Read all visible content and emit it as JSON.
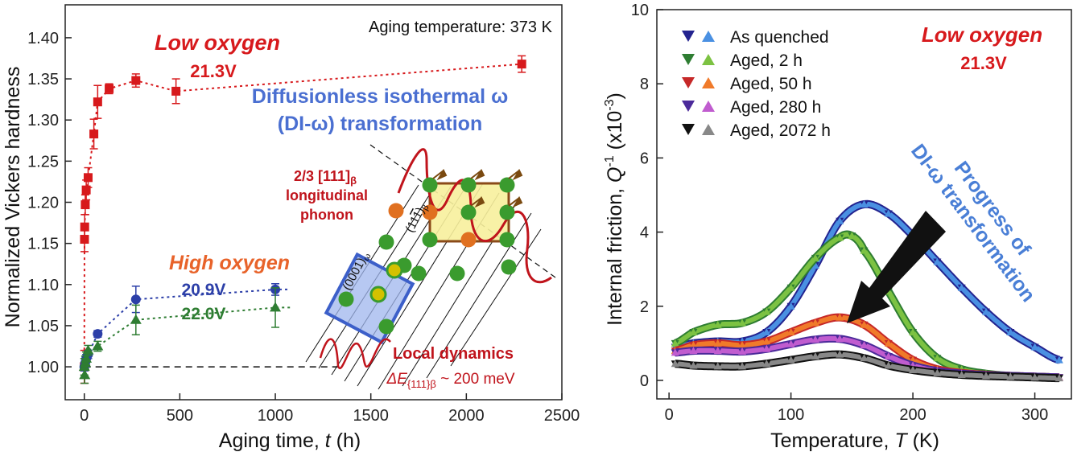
{
  "colors": {
    "red": "#d7191c",
    "blue": "#2c3fa8",
    "green": "#2e7d32",
    "orange": "#e8632a",
    "diagram_blue": "#4a6fd1",
    "lattice_green": "#3a9b2e",
    "lattice_orange": "#e07020",
    "as_quenched_dark": "#23238f",
    "as_quenched_light": "#4a90e2",
    "aged2_dark": "#2e7d32",
    "aged2_light": "#7cc242",
    "aged50_dark": "#c62828",
    "aged50_light": "#f07a2a",
    "aged280_dark": "#4b2a9a",
    "aged280_light": "#c05ccf",
    "aged2072_dark": "#111111",
    "aged2072_light": "#888888"
  },
  "chart_data": [
    {
      "type": "scatter",
      "xlabel_main": "Aging time, ",
      "xlabel_var": "t",
      "xlabel_unit": " (h)",
      "ylabel": "Normalized Vickers hardness",
      "xlim": [
        -100,
        2500
      ],
      "ylim": [
        0.96,
        1.44
      ],
      "xticks": [
        0,
        500,
        1000,
        1500,
        2000,
        2500
      ],
      "yticks": [
        1.0,
        1.05,
        1.1,
        1.15,
        1.2,
        1.25,
        1.3,
        1.35,
        1.4
      ],
      "reference_line_y": 1.0,
      "annotations": {
        "aging_temp": "Aging temperature: 373 K",
        "low_oxygen": "Low oxygen",
        "low_label": "21.3V",
        "high_oxygen": "High oxygen",
        "label_209": "20.9V",
        "label_220": "22.0V",
        "di_line1": "Diffusionless isothermal ω",
        "di_line2": "(DI-ω) transformation",
        "phonon_line1_main": "2/3 [111]",
        "phonon_line1_sub": "β",
        "phonon_line2": "longitudinal",
        "phonon_line3": "phonon",
        "local_dynamics": "Local dynamics",
        "delta_e_main": "ΔE",
        "delta_e_sub": "{111}β",
        "delta_e_rest": " ~ 200 meV",
        "plane_omega_main": "(0001)",
        "plane_omega_sub": "ω",
        "plane_beta_main": "(11",
        "plane_beta_bar": "1",
        "plane_beta_close": ")",
        "plane_beta_sub": "β"
      },
      "series": [
        {
          "name": "21.3V",
          "marker": "square",
          "color": "#d7191c",
          "x": [
            0,
            1,
            2,
            5,
            10,
            20,
            50,
            70,
            130,
            270,
            480,
            2290
          ],
          "y": [
            1.0,
            1.155,
            1.17,
            1.197,
            1.215,
            1.23,
            1.283,
            1.322,
            1.338,
            1.348,
            1.335,
            1.368
          ],
          "err": [
            0.02,
            0.015,
            0.015,
            0.012,
            0.012,
            0.012,
            0.018,
            0.02,
            0.006,
            0.008,
            0.015,
            0.01
          ]
        },
        {
          "name": "20.9V",
          "marker": "circle",
          "color": "#2c3fa8",
          "x": [
            0,
            5,
            10,
            20,
            70,
            270,
            1000
          ],
          "y": [
            1.0,
            1.005,
            1.01,
            1.015,
            1.04,
            1.082,
            1.094
          ],
          "err": [
            0.005,
            0.005,
            0.005,
            0.005,
            0.004,
            0.016,
            0.007
          ]
        },
        {
          "name": "22.0V",
          "marker": "triangle",
          "color": "#2e7d32",
          "x": [
            0,
            2,
            5,
            10,
            20,
            70,
            270,
            1000
          ],
          "y": [
            1.0,
            0.99,
            1.005,
            1.01,
            1.02,
            1.025,
            1.057,
            1.072
          ],
          "err": [
            0.01,
            0.01,
            0.008,
            0.008,
            0.006,
            0.006,
            0.018,
            0.024
          ]
        }
      ]
    },
    {
      "type": "line",
      "xlabel_main": "Temperature, ",
      "xlabel_var": "T",
      "xlabel_unit": " (K)",
      "ylabel_main": "Internal friction, ",
      "ylabel_var": "Q",
      "ylabel_sup": "-1",
      "ylabel_rest": " (x10",
      "ylabel_sup2": "-3",
      "ylabel_close": ")",
      "xlim": [
        -10,
        330
      ],
      "ylim": [
        -0.5,
        10
      ],
      "xticks": [
        0,
        100,
        200,
        300
      ],
      "yticks": [
        0,
        2,
        4,
        6,
        8,
        10
      ],
      "annotations": {
        "low_oxygen": "Low oxygen",
        "low_label": "21.3V",
        "progress_line1": "Progress of",
        "progress_line2": "DI-ω transformation"
      },
      "series": [
        {
          "name": "As quenched",
          "dark": "#23238f",
          "light": "#4a90e2",
          "x": [
            5,
            20,
            40,
            60,
            80,
            100,
            120,
            140,
            160,
            180,
            200,
            220,
            240,
            260,
            280,
            300,
            320
          ],
          "y": [
            0.9,
            1.0,
            1.05,
            1.05,
            1.3,
            2.0,
            3.1,
            4.3,
            4.75,
            4.5,
            3.9,
            3.2,
            2.5,
            1.85,
            1.3,
            0.9,
            0.55
          ]
        },
        {
          "name": "Aged, 2 h",
          "dark": "#2e7d32",
          "light": "#7cc242",
          "x": [
            5,
            20,
            40,
            60,
            80,
            100,
            120,
            140,
            150,
            160,
            180,
            200,
            220,
            240,
            260,
            280,
            300,
            320
          ],
          "y": [
            1.0,
            1.3,
            1.5,
            1.55,
            1.85,
            2.5,
            3.3,
            3.85,
            3.9,
            3.5,
            2.4,
            1.3,
            0.6,
            0.3,
            0.18,
            0.12,
            0.1,
            0.08
          ]
        },
        {
          "name": "Aged, 50 h",
          "dark": "#c62828",
          "light": "#f07a2a",
          "x": [
            5,
            20,
            40,
            60,
            80,
            100,
            120,
            140,
            160,
            180,
            200,
            220,
            240,
            260,
            280,
            300,
            320
          ],
          "y": [
            0.8,
            0.95,
            1.0,
            0.95,
            1.05,
            1.3,
            1.55,
            1.7,
            1.5,
            1.0,
            0.55,
            0.3,
            0.2,
            0.15,
            0.12,
            0.1,
            0.08
          ]
        },
        {
          "name": "Aged, 280 h",
          "dark": "#4b2a9a",
          "light": "#c05ccf",
          "x": [
            5,
            20,
            40,
            60,
            80,
            100,
            120,
            140,
            160,
            180,
            200,
            220,
            240,
            260,
            280,
            300,
            320
          ],
          "y": [
            0.75,
            0.8,
            0.8,
            0.78,
            0.85,
            0.98,
            1.1,
            1.12,
            0.95,
            0.65,
            0.4,
            0.25,
            0.18,
            0.14,
            0.12,
            0.1,
            0.08
          ]
        },
        {
          "name": "Aged, 2072 h",
          "dark": "#111111",
          "light": "#888888",
          "x": [
            5,
            20,
            40,
            60,
            80,
            100,
            120,
            140,
            160,
            180,
            200,
            220,
            240,
            260,
            280,
            300,
            320
          ],
          "y": [
            0.45,
            0.4,
            0.38,
            0.38,
            0.45,
            0.55,
            0.65,
            0.7,
            0.6,
            0.4,
            0.28,
            0.2,
            0.15,
            0.12,
            0.1,
            0.08,
            0.06
          ]
        }
      ]
    }
  ]
}
